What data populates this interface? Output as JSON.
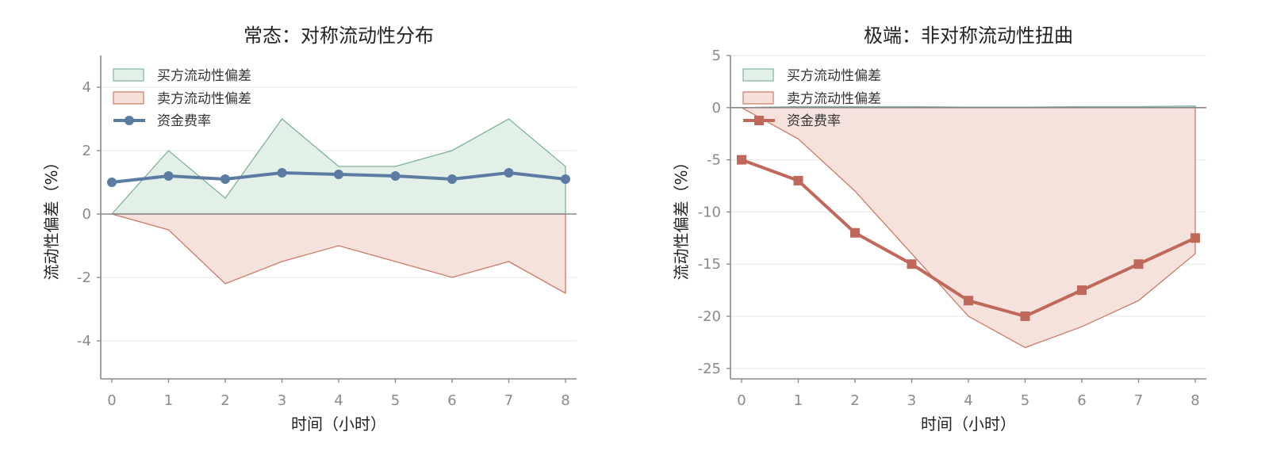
{
  "colors": {
    "buy_fill": "#e2f0e7",
    "buy_line": "#7fb39a",
    "sell_fill": "#f5e0da",
    "sell_line": "#cd7a68",
    "funding_left": "#5b7ba3",
    "funding_right": "#c0685a",
    "axis": "#888888",
    "grid": "#e6e6e6",
    "zero_line": "#888888"
  },
  "chart_data": [
    {
      "type": "area",
      "title": "常态：对称流动性分布",
      "xlabel": "时间（小时）",
      "ylabel": "流动性偏差（%）",
      "x": [
        0,
        1,
        2,
        3,
        4,
        5,
        6,
        7,
        8
      ],
      "ylim": [
        -5.2,
        5.0
      ],
      "yticks": [
        -4,
        -2,
        0,
        2,
        4
      ],
      "ytick_labels": [
        "-4",
        "-2",
        "0",
        "2",
        "4"
      ],
      "xtick_labels": [
        "0",
        "1",
        "2",
        "3",
        "4",
        "5",
        "6",
        "7",
        "8"
      ],
      "grid": "horizontal",
      "legend_position": "top-left",
      "series": [
        {
          "name": "买方流动性偏差",
          "kind": "area",
          "values": [
            0,
            2.0,
            0.5,
            3.0,
            1.5,
            1.5,
            2.0,
            3.0,
            1.5
          ]
        },
        {
          "name": "卖方流动性偏差",
          "kind": "area",
          "values": [
            0,
            -0.5,
            -2.2,
            -1.5,
            -1.0,
            -1.5,
            -2.0,
            -1.5,
            -2.5
          ]
        },
        {
          "name": "资金费率",
          "kind": "line",
          "marker": "circle",
          "values": [
            1.0,
            1.2,
            1.1,
            1.3,
            1.25,
            1.2,
            1.1,
            1.3,
            1.1
          ]
        }
      ]
    },
    {
      "type": "area",
      "title": "极端：非对称流动性扭曲",
      "xlabel": "时间（小时）",
      "ylabel": "流动性偏差（%）",
      "x": [
        0,
        1,
        2,
        3,
        4,
        5,
        6,
        7,
        8
      ],
      "ylim": [
        -26.0,
        5.0
      ],
      "yticks": [
        -25,
        -20,
        -15,
        -10,
        -5,
        0,
        5
      ],
      "ytick_labels": [
        "-25",
        "-20",
        "-15",
        "-10",
        "-5",
        "0",
        "5"
      ],
      "xtick_labels": [
        "0",
        "1",
        "2",
        "3",
        "4",
        "5",
        "6",
        "7",
        "8"
      ],
      "grid": "horizontal",
      "legend_position": "top-left",
      "series": [
        {
          "name": "买方流动性偏差",
          "kind": "area",
          "values": [
            0,
            0.1,
            0.1,
            0.1,
            0.05,
            0.05,
            0.1,
            0.1,
            0.15
          ]
        },
        {
          "name": "卖方流动性偏差",
          "kind": "area",
          "values": [
            0,
            -3.0,
            -8.0,
            -14.0,
            -20.0,
            -23.0,
            -21.0,
            -18.5,
            -14.0
          ]
        },
        {
          "name": "资金费率",
          "kind": "line",
          "marker": "square",
          "values": [
            -5.0,
            -7.0,
            -12.0,
            -15.0,
            -18.5,
            -20.0,
            -17.5,
            -15.0,
            -12.5
          ]
        }
      ]
    }
  ]
}
